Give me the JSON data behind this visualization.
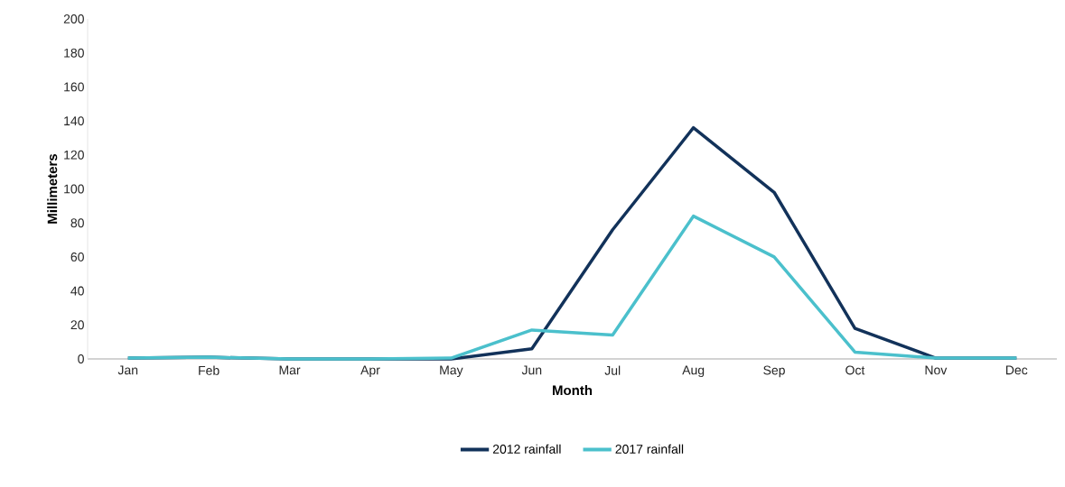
{
  "chart_data": {
    "type": "line",
    "xlabel": "Month",
    "ylabel": "Millimeters",
    "categories": [
      "Jan",
      "Feb",
      "Mar",
      "Apr",
      "May",
      "Jun",
      "Jul",
      "Aug",
      "Sep",
      "Oct",
      "Nov",
      "Dec"
    ],
    "series": [
      {
        "name": "2012 rainfall",
        "color": "#12325a",
        "values": [
          0.5,
          1,
          0,
          0,
          0,
          6,
          76,
          136,
          98,
          18,
          0.5,
          0.5
        ]
      },
      {
        "name": "2017 rainfall",
        "color": "#4bc0cc",
        "values": [
          0.5,
          1,
          0,
          0,
          0.5,
          17,
          14,
          84,
          60,
          4,
          0.5,
          0.5
        ]
      }
    ],
    "ylim": [
      0,
      200
    ],
    "yticks": [
      0,
      20,
      40,
      60,
      80,
      100,
      120,
      140,
      160,
      180,
      200
    ],
    "grid": false,
    "legend": "bottom",
    "marker": "none",
    "line_style": "solid"
  }
}
